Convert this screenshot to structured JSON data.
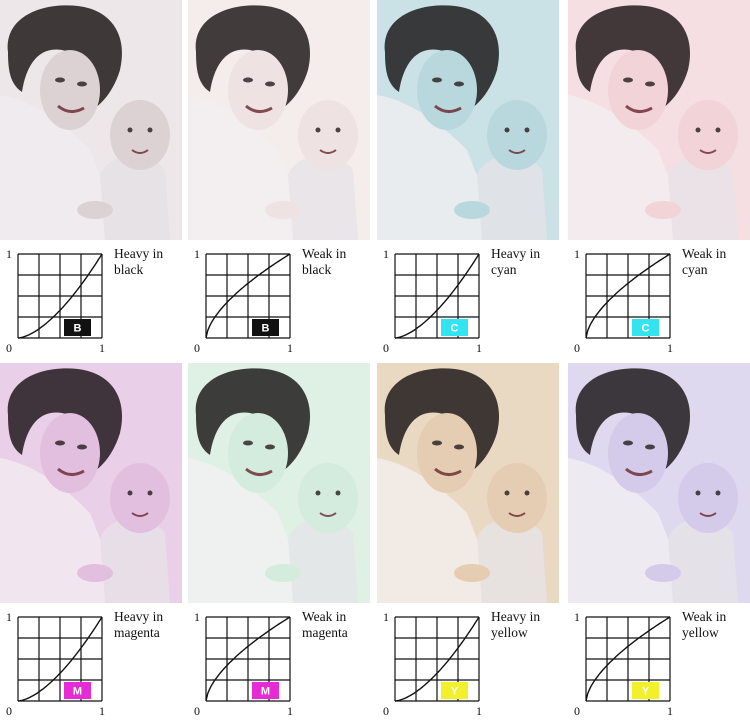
{
  "panels": [
    {
      "caption": "Heavy in black",
      "badge": "B",
      "badge_bg": "#111111",
      "badge_fg": "#ffffff",
      "curve": "heavy",
      "tint": "#dcd2d4",
      "bg": "#f2ecf0"
    },
    {
      "caption": "Weak in black",
      "badge": "B",
      "badge_bg": "#111111",
      "badge_fg": "#ffffff",
      "curve": "weak",
      "tint": "#f0e2e2",
      "bg": "#f7eeee"
    },
    {
      "caption": "Heavy in cyan",
      "badge": "C",
      "badge_bg": "#33e3ef",
      "badge_fg": "#ffffff",
      "curve": "heavy",
      "tint": "#b9d8de",
      "bg": "#cfe3e8"
    },
    {
      "caption": "Weak in cyan",
      "badge": "C",
      "badge_bg": "#33e3ef",
      "badge_fg": "#ffffff",
      "curve": "weak",
      "tint": "#f2d3d8",
      "bg": "#f6e2e6"
    },
    {
      "caption": "Heavy in magenta",
      "badge": "M",
      "badge_bg": "#e62ad4",
      "badge_fg": "#ffffff",
      "curve": "heavy",
      "tint": "#e2bfe0",
      "bg": "#ecd4ec"
    },
    {
      "caption": "Weak in magenta",
      "badge": "M",
      "badge_bg": "#e62ad4",
      "badge_fg": "#ffffff",
      "curve": "weak",
      "tint": "#d4ecdf",
      "bg": "#e2f1e6"
    },
    {
      "caption": "Heavy in yellow",
      "badge": "Y",
      "badge_bg": "#f1f02a",
      "badge_fg": "#ffffff",
      "curve": "heavy",
      "tint": "#e4cdb4",
      "bg": "#ecdcc6"
    },
    {
      "caption": "Weak in yellow",
      "badge": "Y",
      "badge_bg": "#f1f02a",
      "badge_fg": "#ffffff",
      "curve": "weak",
      "tint": "#d3cbe9",
      "bg": "#e2dcf1"
    }
  ],
  "axis": {
    "origin": "0",
    "x_end": "1",
    "y_end": "1"
  }
}
